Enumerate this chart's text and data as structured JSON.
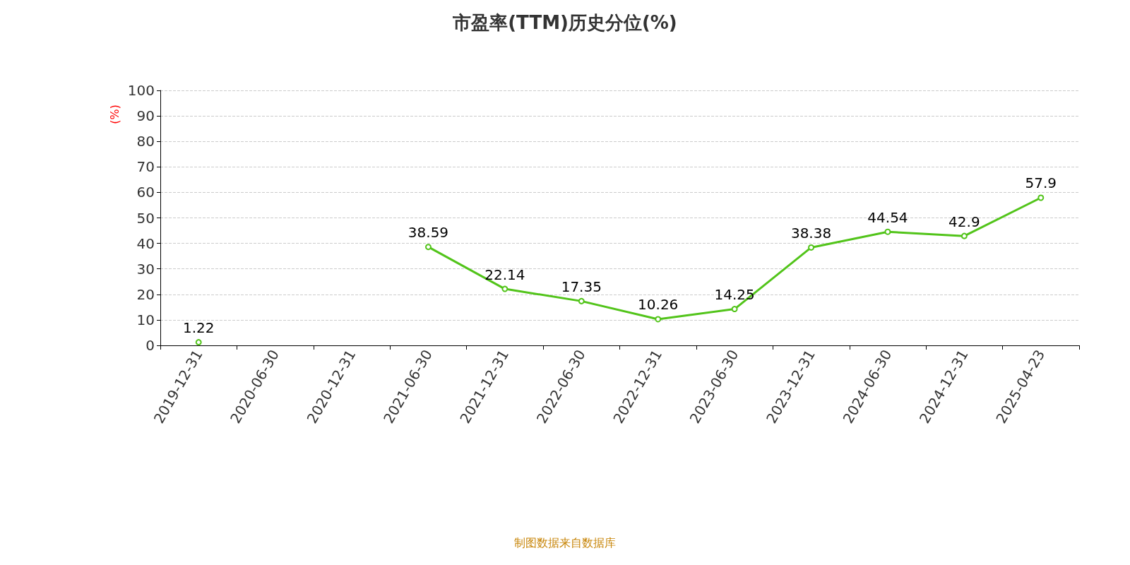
{
  "chart_data": {
    "type": "line",
    "title": "市盈率(TTM)历史分位(%)",
    "ylabel": "(%)",
    "categories": [
      "2019-12-31",
      "2020-06-30",
      "2020-12-31",
      "2021-06-30",
      "2021-12-31",
      "2022-06-30",
      "2022-12-31",
      "2023-06-30",
      "2023-12-31",
      "2024-06-30",
      "2024-12-31",
      "2025-04-23"
    ],
    "series": [
      {
        "color": "#52c41a",
        "values": [
          1.22,
          null,
          null,
          38.59,
          22.14,
          17.35,
          10.26,
          14.25,
          38.38,
          44.54,
          42.9,
          57.9
        ]
      }
    ],
    "ylim": [
      0,
      100
    ],
    "yticks": [
      0,
      10,
      20,
      30,
      40,
      50,
      60,
      70,
      80,
      90,
      100
    ],
    "grid": "y",
    "marker": "circle",
    "line_style": "solid",
    "data_labels": true,
    "annotations": [
      "制图数据来自数据库"
    ]
  }
}
